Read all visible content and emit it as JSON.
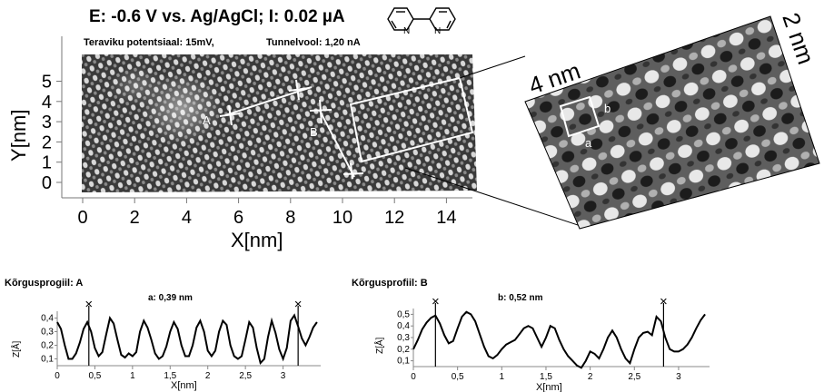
{
  "header": {
    "title": "E: -0.6 V vs. Ag/AgCl;  I: 0.02 µA",
    "subtitle_left": "Teraviku potentsiaal: 15mV,",
    "subtitle_right": "Tunnelvool: 1,20 nA"
  },
  "stm_main": {
    "ylabel": "Y[nm]",
    "xlabel": "X[nm]",
    "xticks": [
      "0",
      "2",
      "4",
      "6",
      "8",
      "10",
      "12",
      "14"
    ],
    "yticks": [
      "0",
      "1",
      "2",
      "3",
      "4",
      "5"
    ],
    "marker_a": "A",
    "marker_b": "B"
  },
  "zoom": {
    "label_width": "4 nm",
    "label_height": "2 nm",
    "cell_a": "a",
    "cell_b": "b"
  },
  "profile_a": {
    "title": "Kõrgusprogiil: A",
    "annotation": "a: 0,39 nm",
    "ylabel": "Z[Å]",
    "xlabel": "X[nm]",
    "xticks": [
      "0",
      "0,5",
      "1",
      "1,5",
      "2",
      "2,5",
      "3"
    ],
    "yticks": [
      "0,4",
      "0,3",
      "0,2",
      "0,1"
    ]
  },
  "profile_b": {
    "title": "Kõrgusprofiil: B",
    "annotation": "b: 0,52 nm",
    "ylabel": "Z[Å]",
    "xlabel": "X[nm]",
    "xticks": [
      "0",
      "0,5",
      "1",
      "1,5",
      "2",
      "2,5",
      "3"
    ],
    "yticks": [
      "0,5",
      "0,4",
      "0,3",
      "0,2",
      "0,1"
    ]
  },
  "chart_data": [
    {
      "type": "line",
      "title": "Kõrgusprogiil: A",
      "xlabel": "X[nm]",
      "ylabel": "Z[Å]",
      "xlim": [
        0,
        3.5
      ],
      "ylim": [
        0.05,
        0.45
      ],
      "x": [
        0,
        0.05,
        0.1,
        0.15,
        0.2,
        0.25,
        0.3,
        0.35,
        0.4,
        0.45,
        0.5,
        0.55,
        0.6,
        0.65,
        0.7,
        0.75,
        0.8,
        0.85,
        0.9,
        0.95,
        1.0,
        1.05,
        1.1,
        1.15,
        1.2,
        1.25,
        1.3,
        1.35,
        1.4,
        1.45,
        1.5,
        1.55,
        1.6,
        1.65,
        1.7,
        1.75,
        1.8,
        1.85,
        1.9,
        1.95,
        2.0,
        2.05,
        2.1,
        2.15,
        2.2,
        2.25,
        2.3,
        2.35,
        2.4,
        2.45,
        2.5,
        2.55,
        2.6,
        2.65,
        2.7,
        2.75,
        2.8,
        2.85,
        2.9,
        2.95,
        3.0,
        3.05,
        3.1,
        3.15,
        3.2,
        3.25,
        3.3,
        3.35,
        3.4,
        3.45
      ],
      "values": [
        0.37,
        0.32,
        0.2,
        0.1,
        0.1,
        0.14,
        0.22,
        0.32,
        0.37,
        0.3,
        0.18,
        0.12,
        0.15,
        0.28,
        0.4,
        0.36,
        0.24,
        0.13,
        0.11,
        0.14,
        0.12,
        0.15,
        0.3,
        0.38,
        0.33,
        0.24,
        0.14,
        0.1,
        0.12,
        0.19,
        0.3,
        0.37,
        0.32,
        0.2,
        0.12,
        0.12,
        0.2,
        0.33,
        0.38,
        0.3,
        0.16,
        0.12,
        0.16,
        0.3,
        0.38,
        0.35,
        0.2,
        0.12,
        0.1,
        0.12,
        0.24,
        0.37,
        0.33,
        0.18,
        0.07,
        0.1,
        0.26,
        0.38,
        0.29,
        0.17,
        0.1,
        0.18,
        0.38,
        0.42,
        0.34,
        0.25,
        0.2,
        0.26,
        0.33,
        0.37
      ],
      "markers_x": [
        0.42,
        3.2
      ]
    },
    {
      "type": "line",
      "title": "Kõrgusprofiil: B",
      "xlabel": "X[nm]",
      "ylabel": "Z[Å]",
      "xlim": [
        0,
        3.35
      ],
      "ylim": [
        0.05,
        0.55
      ],
      "x": [
        0,
        0.05,
        0.1,
        0.15,
        0.2,
        0.25,
        0.3,
        0.35,
        0.4,
        0.45,
        0.5,
        0.55,
        0.6,
        0.65,
        0.7,
        0.75,
        0.8,
        0.85,
        0.9,
        0.95,
        1.0,
        1.05,
        1.1,
        1.15,
        1.2,
        1.25,
        1.3,
        1.35,
        1.4,
        1.45,
        1.5,
        1.55,
        1.6,
        1.65,
        1.7,
        1.75,
        1.8,
        1.85,
        1.9,
        1.95,
        2.0,
        2.05,
        2.1,
        2.15,
        2.2,
        2.25,
        2.3,
        2.35,
        2.4,
        2.45,
        2.5,
        2.55,
        2.6,
        2.65,
        2.7,
        2.75,
        2.8,
        2.85,
        2.9,
        2.95,
        3.0,
        3.05,
        3.1,
        3.15,
        3.2,
        3.25,
        3.3
      ],
      "values": [
        0.2,
        0.28,
        0.37,
        0.43,
        0.47,
        0.49,
        0.42,
        0.32,
        0.25,
        0.27,
        0.38,
        0.48,
        0.52,
        0.5,
        0.44,
        0.33,
        0.22,
        0.14,
        0.12,
        0.15,
        0.2,
        0.24,
        0.26,
        0.28,
        0.33,
        0.38,
        0.4,
        0.38,
        0.3,
        0.22,
        0.3,
        0.4,
        0.38,
        0.28,
        0.2,
        0.14,
        0.1,
        0.06,
        0.04,
        0.1,
        0.18,
        0.16,
        0.12,
        0.2,
        0.3,
        0.36,
        0.3,
        0.2,
        0.12,
        0.08,
        0.2,
        0.3,
        0.34,
        0.35,
        0.32,
        0.48,
        0.44,
        0.3,
        0.2,
        0.18,
        0.18,
        0.2,
        0.24,
        0.3,
        0.38,
        0.45,
        0.5
      ],
      "markers_x": [
        0.25,
        2.83
      ]
    }
  ]
}
